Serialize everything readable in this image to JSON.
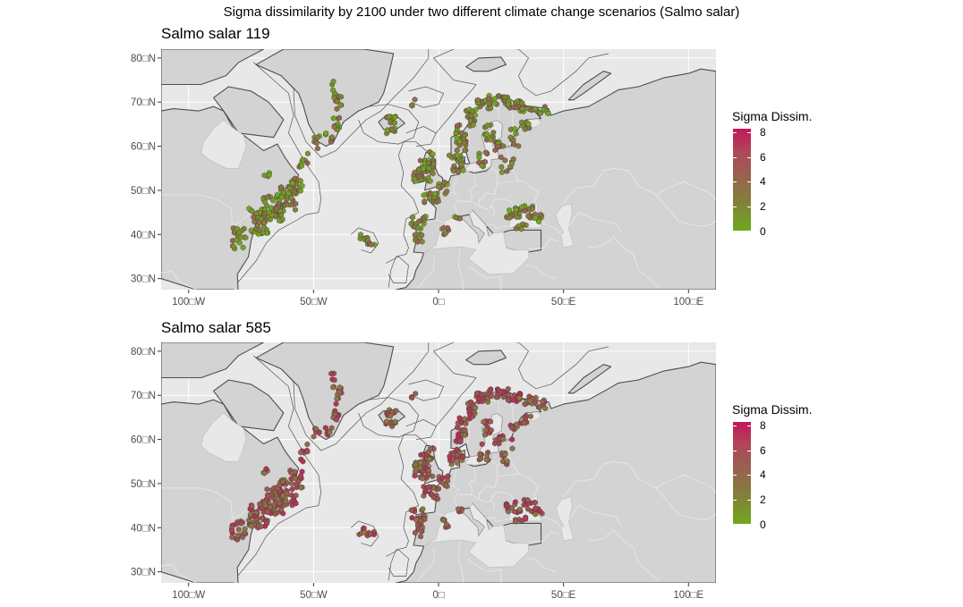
{
  "title": "Sigma dissimilarity by 2100 under two different climate change scenarios (Salmo salar)",
  "panels": [
    {
      "title": "Salmo salar 119",
      "legend_title": "Sigma Dissim.",
      "legend_ticks": [
        "8",
        "6",
        "4",
        "2",
        "0"
      ],
      "lat_labels": [
        "80□N",
        "70□N",
        "60□N",
        "50□N",
        "40□N",
        "30□N"
      ],
      "lon_labels": [
        "100□W",
        "50□W",
        "0□",
        "50□E",
        "100□E"
      ],
      "dissim_level": 0.25
    },
    {
      "title": "Salmo salar 585",
      "legend_title": "Sigma Dissim.",
      "legend_ticks": [
        "8",
        "6",
        "4",
        "2",
        "0"
      ],
      "lat_labels": [
        "80□N",
        "70□N",
        "60□N",
        "50□N",
        "40□N",
        "30□N"
      ],
      "lon_labels": [
        "100□W",
        "50□W",
        "0□",
        "50□E",
        "100□E"
      ],
      "dissim_level": 0.6
    }
  ],
  "colors": {
    "ocean": "#e8e8e8",
    "land": "#d3d3d3",
    "coast": "#4d4d4d",
    "low": "#6ea91b",
    "mid": "#96644f",
    "high": "#c2185b"
  }
}
